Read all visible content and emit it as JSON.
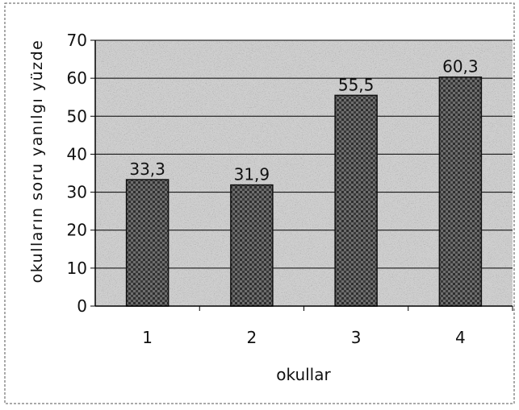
{
  "chart_data": {
    "type": "bar",
    "title": "",
    "xlabel": "okullar",
    "ylabel": "okulların soru yanılgı yüzde",
    "categories": [
      "1",
      "2",
      "3",
      "4"
    ],
    "values": [
      33.3,
      31.9,
      55.5,
      60.3
    ],
    "data_labels": [
      "33,3",
      "31,9",
      "55,5",
      "60,3"
    ],
    "yticks": [
      "0",
      "10",
      "20",
      "30",
      "40",
      "50",
      "60",
      "70"
    ],
    "ylim": [
      0,
      70
    ],
    "grid": true,
    "legend": "none",
    "colors": {
      "bar_fill": "#5a5a5a",
      "bar_stroke": "#111111",
      "plot_bg": "#c9c9c9",
      "gridline": "#000000",
      "text": "#111111"
    }
  }
}
